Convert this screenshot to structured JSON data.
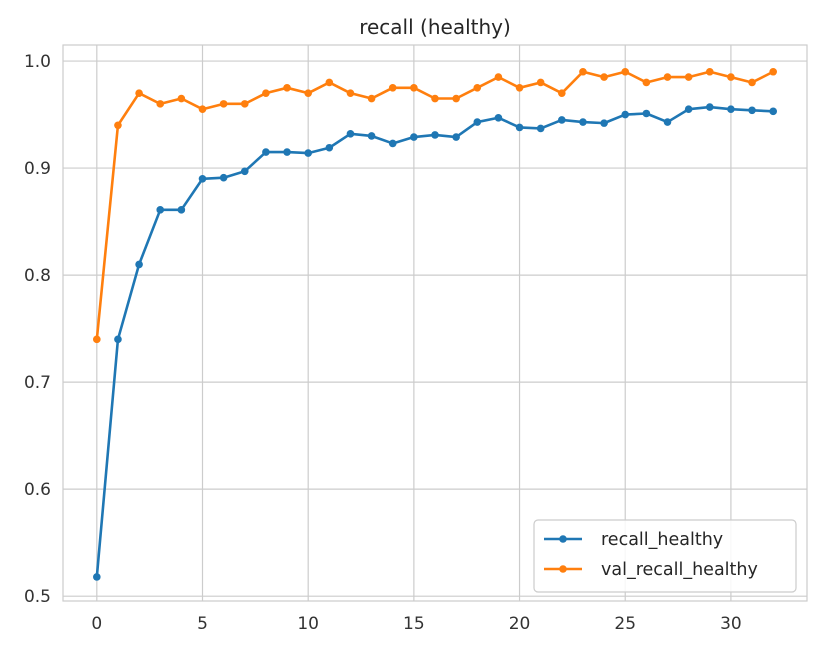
{
  "chart_data": {
    "type": "line",
    "title": "recall (healthy)",
    "xlabel": "",
    "ylabel": "",
    "xlim": [
      -1.6,
      33.6
    ],
    "ylim": [
      0.4955,
      1.015
    ],
    "xticks": [
      0,
      5,
      10,
      15,
      20,
      25,
      30
    ],
    "yticks": [
      0.5,
      0.6,
      0.7,
      0.8,
      0.9,
      1.0
    ],
    "xtick_labels": [
      "0",
      "5",
      "10",
      "15",
      "20",
      "25",
      "30"
    ],
    "ytick_labels": [
      "0.5",
      "0.6",
      "0.7",
      "0.8",
      "0.9",
      "1.0"
    ],
    "grid": true,
    "legend_position": "lower-right",
    "x": [
      0,
      1,
      2,
      3,
      4,
      5,
      6,
      7,
      8,
      9,
      10,
      11,
      12,
      13,
      14,
      15,
      16,
      17,
      18,
      19,
      20,
      21,
      22,
      23,
      24,
      25,
      26,
      27,
      28,
      29,
      30,
      31,
      32
    ],
    "series": [
      {
        "name": "recall_healthy",
        "color": "#1f77b4",
        "values": [
          0.518,
          0.74,
          0.81,
          0.861,
          0.861,
          0.89,
          0.891,
          0.897,
          0.915,
          0.915,
          0.914,
          0.919,
          0.932,
          0.93,
          0.923,
          0.929,
          0.931,
          0.929,
          0.943,
          0.947,
          0.938,
          0.937,
          0.945,
          0.943,
          0.942,
          0.95,
          0.951,
          0.943,
          0.955,
          0.957,
          0.955,
          0.954,
          0.953
        ]
      },
      {
        "name": "val_recall_healthy",
        "color": "#ff7f0e",
        "values": [
          0.74,
          0.94,
          0.97,
          0.96,
          0.965,
          0.955,
          0.96,
          0.96,
          0.97,
          0.975,
          0.97,
          0.98,
          0.97,
          0.965,
          0.975,
          0.975,
          0.965,
          0.965,
          0.975,
          0.985,
          0.975,
          0.98,
          0.97,
          0.99,
          0.985,
          0.99,
          0.98,
          0.985,
          0.985,
          0.99,
          0.985,
          0.98,
          0.99
        ]
      }
    ]
  }
}
